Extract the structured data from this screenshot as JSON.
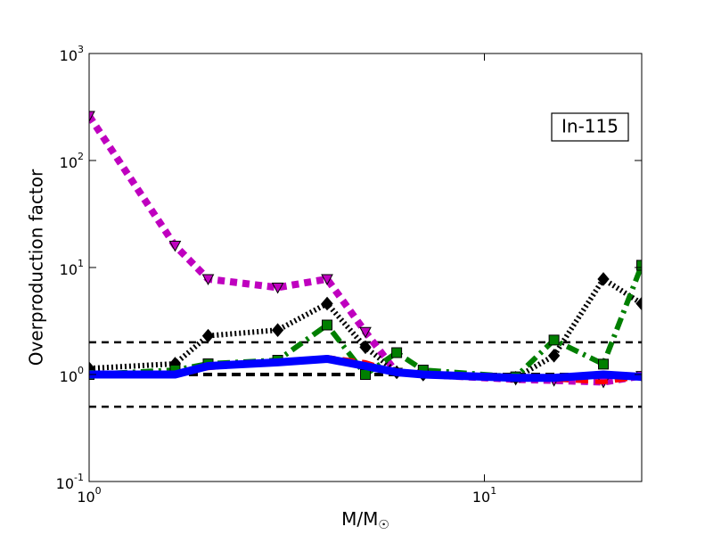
{
  "chart_data": {
    "type": "line",
    "xlabel": "M/M",
    "xlabel_sub": "☉",
    "ylabel": "Overproduction factor",
    "annotation": "In-115",
    "x": [
      1,
      1.65,
      2,
      3,
      4,
      5,
      6,
      7,
      12,
      15,
      20,
      25
    ],
    "xlim": [
      1,
      25
    ],
    "ylim": [
      0.1,
      1000
    ],
    "xscale": "log",
    "yscale": "log",
    "xticks": [
      {
        "value": 1,
        "label": "10",
        "sup": "0"
      },
      {
        "value": 10,
        "label": "10",
        "sup": "1"
      }
    ],
    "yticks": [
      {
        "value": 0.1,
        "label": "10",
        "sup": "-1"
      },
      {
        "value": 1,
        "label": "10",
        "sup": "0"
      },
      {
        "value": 10,
        "label": "10",
        "sup": "1"
      },
      {
        "value": 100,
        "label": "10",
        "sup": "2"
      },
      {
        "value": 1000,
        "label": "10",
        "sup": "3"
      }
    ],
    "reference_lines": [
      0.5,
      1,
      2
    ],
    "series": [
      {
        "color": "#bf00bf",
        "linestyle": "dotted",
        "marker": "triangle-down",
        "values": [
          261,
          16,
          7.8,
          6.5,
          7.8,
          2.5,
          1.04,
          1.0,
          0.9,
          0.88,
          0.85,
          0.97
        ]
      },
      {
        "color": "#000000",
        "linestyle": "dense-dotted",
        "marker": "diamond",
        "values": [
          1.14,
          1.26,
          2.3,
          2.6,
          4.6,
          1.8,
          1.05,
          1.0,
          0.93,
          1.5,
          7.8,
          4.6
        ]
      },
      {
        "color": "#007f00",
        "linestyle": "dashdot",
        "marker": "square",
        "values": [
          1.0,
          1.1,
          1.26,
          1.36,
          2.9,
          1.0,
          1.6,
          1.1,
          0.95,
          2.1,
          1.25,
          10.5
        ]
      },
      {
        "color": "#ff0000",
        "linestyle": "dashed",
        "marker": "none",
        "values": [
          1.0,
          0.97,
          1.15,
          1.3,
          1.45,
          1.3,
          1.05,
          1.0,
          0.9,
          0.9,
          0.85,
          0.95
        ]
      },
      {
        "color": "#0000ff",
        "linestyle": "solid",
        "marker": "none",
        "values": [
          1.0,
          1.0,
          1.2,
          1.3,
          1.4,
          1.2,
          1.05,
          1.0,
          0.93,
          0.93,
          1.0,
          0.95
        ]
      }
    ]
  }
}
